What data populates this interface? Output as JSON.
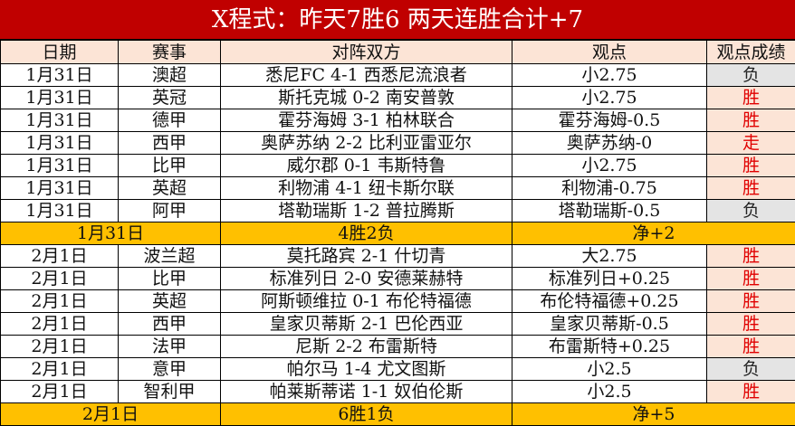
{
  "title": "X程式：昨天7胜6 两天连胜合计+7",
  "headers": [
    "日期",
    "赛事",
    "对阵双方",
    "观点",
    "观点成绩"
  ],
  "colors": {
    "title_bg": "#c00000",
    "header_bg": "#fce4d6",
    "summary_bg": "#ffc000",
    "win_text": "#e00000",
    "lose_bg": "#e4e4e4"
  },
  "groups": [
    {
      "rows": [
        [
          "1月31日",
          "澳超",
          "悉尼FC 4-1 西悉尼流浪者",
          "小2.75",
          "负"
        ],
        [
          "1月31日",
          "英冠",
          "斯托克城 0-2 南安普敦",
          "小2.75",
          "胜"
        ],
        [
          "1月31日",
          "德甲",
          "霍芬海姆 3-1 柏林联合",
          "霍芬海姆-0.5",
          "胜"
        ],
        [
          "1月31日",
          "西甲",
          "奥萨苏纳 2-2 比利亚雷亚尔",
          "奥萨苏纳-0",
          "走"
        ],
        [
          "1月31日",
          "比甲",
          "威尔郡 0-1 韦斯特鲁",
          "小2.75",
          "胜"
        ],
        [
          "1月31日",
          "英超",
          "利物浦 4-1 纽卡斯尔联",
          "利物浦-0.75",
          "胜"
        ],
        [
          "1月31日",
          "阿甲",
          "塔勒瑞斯 1-2 普拉腾斯",
          "塔勒瑞斯-0.5",
          "负"
        ]
      ],
      "summary": [
        "1月31日",
        "4胜2负",
        "净+2"
      ]
    },
    {
      "rows": [
        [
          "2月1日",
          "波兰超",
          "莫托路宾 2-1 什切青",
          "大2.75",
          "胜"
        ],
        [
          "2月1日",
          "比甲",
          "标准列日 2-0 安德莱赫特",
          "标准列日+0.25",
          "胜"
        ],
        [
          "2月1日",
          "英超",
          "阿斯顿维拉 0-1 布伦特福德",
          "布伦特福德+0.25",
          "胜"
        ],
        [
          "2月1日",
          "西甲",
          "皇家贝蒂斯 2-1 巴伦西亚",
          "皇家贝蒂斯-0.5",
          "胜"
        ],
        [
          "2月1日",
          "法甲",
          "尼斯 2-2 布雷斯特",
          "布雷斯特+0.25",
          "胜"
        ],
        [
          "2月1日",
          "意甲",
          "帕尔马 1-4 尤文图斯",
          "小2.5",
          "负"
        ],
        [
          "2月1日",
          "智利甲",
          "帕莱斯蒂诺 1-1 奴伯伦斯",
          "小2.5",
          "胜"
        ]
      ],
      "summary": [
        "2月1日",
        "6胜1负",
        "净+5"
      ]
    }
  ]
}
